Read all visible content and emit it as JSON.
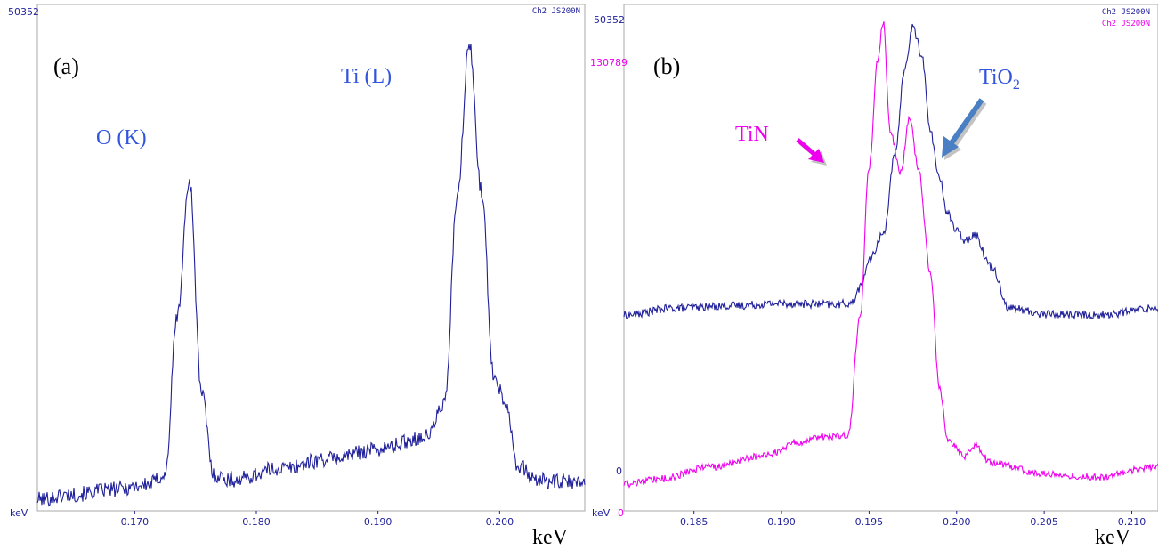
{
  "colors": {
    "blue": "#1f1f9a",
    "magenta": "#ee00ee",
    "label_blue": "#3355dd",
    "arrow_blue": "#4a7fc4",
    "frame": "#a8a8a8"
  },
  "chart_data": [
    {
      "type": "line",
      "panel_label": "(a)",
      "y_top_label": "50352",
      "channel_label": "Ch2 JS200N",
      "x_unit_small": "keV",
      "xlabel": "keV",
      "xlim": [
        0.162,
        0.207
      ],
      "ylim": [
        0,
        50352
      ],
      "xticks": [
        "0.170",
        "0.180",
        "0.190",
        "0.200"
      ],
      "xtick_values": [
        0.17,
        0.18,
        0.19,
        0.2
      ],
      "annotations": [
        "O (K)",
        "Ti (L)"
      ],
      "series": [
        {
          "color": "#1f1f9a",
          "noise": 800,
          "x": [
            0.162,
            0.165,
            0.168,
            0.171,
            0.1725,
            0.1735,
            0.1745,
            0.1755,
            0.1765,
            0.178,
            0.182,
            0.186,
            0.19,
            0.194,
            0.1955,
            0.1965,
            0.1975,
            0.1985,
            0.1995,
            0.2005,
            0.2015,
            0.203,
            0.205,
            0.207
          ],
          "values": [
            1000,
            1500,
            2000,
            2500,
            3500,
            20000,
            34000,
            12000,
            3500,
            3000,
            4200,
            5200,
            6200,
            7500,
            11000,
            32000,
            48000,
            33000,
            14000,
            11000,
            4500,
            3000,
            2800,
            2700
          ]
        }
      ]
    },
    {
      "type": "line",
      "panel_label": "(b)",
      "y_top_labels": [
        "50352",
        "130789"
      ],
      "y_zero_label": "0",
      "x_origin_labels": [
        "keV",
        "0"
      ],
      "channel_labels": [
        "Ch2 JS200N",
        "Ch2 JS200N"
      ],
      "xlabel": "keV",
      "xlim": [
        0.181,
        0.2115
      ],
      "xticks": [
        "0.185",
        "0.190",
        "0.195",
        "0.200",
        "0.205",
        "0.210"
      ],
      "xtick_values": [
        0.185,
        0.19,
        0.195,
        0.2,
        0.205,
        0.21
      ],
      "annotations": [
        "TiN",
        "TiO",
        "2"
      ],
      "series": [
        {
          "name": "Ch2 JS200N",
          "color": "#1f1f9a",
          "ylim": [
            -32000,
            50352
          ],
          "noise": 700,
          "x": [
            0.181,
            0.184,
            0.187,
            0.19,
            0.193,
            0.194,
            0.1945,
            0.195,
            0.1958,
            0.1965,
            0.197,
            0.1975,
            0.198,
            0.1985,
            0.199,
            0.1995,
            0.2,
            0.2005,
            0.201,
            0.202,
            0.203,
            0.205,
            0.208,
            0.2115
          ],
          "values": [
            800,
            2000,
            2400,
            2800,
            2600,
            2800,
            5500,
            10000,
            14500,
            28000,
            42000,
            49500,
            45000,
            32000,
            24000,
            18000,
            15000,
            13500,
            14500,
            9000,
            2000,
            1000,
            800,
            2000
          ]
        },
        {
          "name": "Ch2 JS200N",
          "color": "#ee00ee",
          "ylim": [
            -7000,
            130789
          ],
          "noise": 1000,
          "x": [
            0.181,
            0.183,
            0.186,
            0.189,
            0.191,
            0.1925,
            0.1938,
            0.1945,
            0.195,
            0.1955,
            0.1958,
            0.1962,
            0.1968,
            0.1973,
            0.1978,
            0.1985,
            0.199,
            0.1995,
            0.2005,
            0.201,
            0.202,
            0.205,
            0.208,
            0.2115
          ],
          "values": [
            0,
            1500,
            5000,
            8000,
            12000,
            13500,
            14000,
            48000,
            90000,
            120000,
            131000,
            100000,
            88000,
            104000,
            90000,
            60000,
            28000,
            12000,
            8000,
            11000,
            6000,
            3000,
            2000,
            5000
          ]
        }
      ]
    }
  ]
}
